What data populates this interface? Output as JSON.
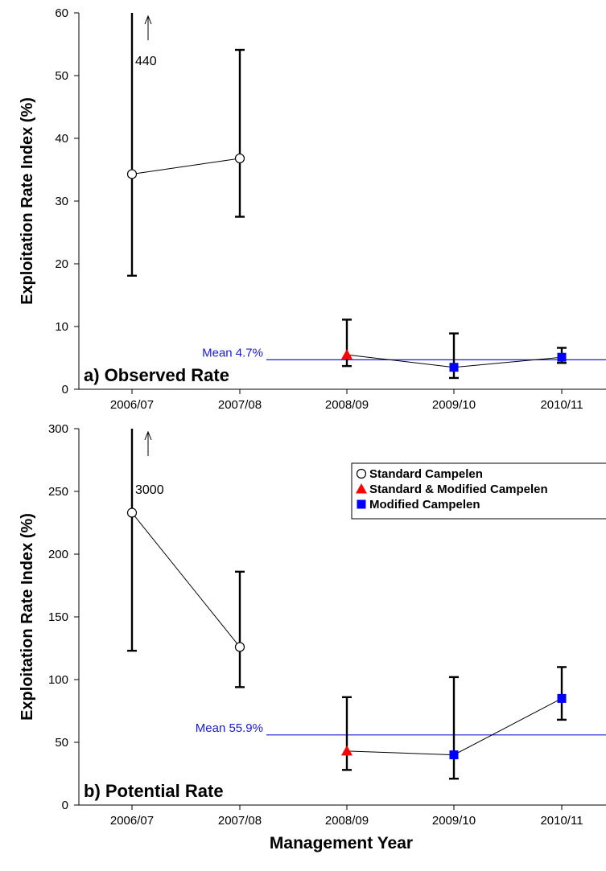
{
  "xlabel": "Management Year",
  "categories": [
    "2006/07",
    "2007/08",
    "2008/09",
    "2009/10",
    "2010/11"
  ],
  "colors": {
    "mean_line": "#1a1adb",
    "standard_marker_fill": "#ffffff",
    "standard_and_modified_marker": "#ff0000",
    "modified_marker": "#0000ff",
    "axis": "#000000"
  },
  "legend": {
    "items": [
      {
        "label": "Standard Campelen",
        "marker": "circle-open"
      },
      {
        "label": "Standard & Modified Campelen",
        "marker": "triangle-red"
      },
      {
        "label": "Modified Campelen",
        "marker": "square-blue"
      }
    ]
  },
  "chart_data": [
    {
      "type": "line",
      "panel_label": "a) Observed Rate",
      "ylabel": "Exploitation Rate Index (%)",
      "ylim": [
        0,
        60
      ],
      "yticks": [
        0,
        10,
        20,
        30,
        40,
        50,
        60
      ],
      "xlabel": "",
      "mean_label": "Mean 4.7%",
      "mean_value": 4.7,
      "off_scale_note": "440",
      "points": [
        {
          "category": "2006/07",
          "value": 34.3,
          "lower": 18.1,
          "upper": 440,
          "marker": "circle-open"
        },
        {
          "category": "2007/08",
          "value": 36.8,
          "lower": 27.5,
          "upper": 54.1,
          "marker": "circle-open"
        },
        {
          "category": "2008/09",
          "value": 5.5,
          "lower": 3.7,
          "upper": 11.1,
          "marker": "triangle-red"
        },
        {
          "category": "2009/10",
          "value": 3.5,
          "lower": 1.8,
          "upper": 8.9,
          "marker": "square-blue"
        },
        {
          "category": "2010/11",
          "value": 5.1,
          "lower": 4.2,
          "upper": 6.6,
          "marker": "square-blue"
        }
      ]
    },
    {
      "type": "line",
      "panel_label": "b) Potential Rate",
      "ylabel": "Exploitation Rate Index (%)",
      "ylim": [
        0,
        300
      ],
      "yticks": [
        0,
        50,
        100,
        150,
        200,
        250,
        300
      ],
      "xlabel": "Management Year",
      "mean_label": "Mean 55.9%",
      "mean_value": 55.9,
      "off_scale_note": "3000",
      "points": [
        {
          "category": "2006/07",
          "value": 233,
          "lower": 123,
          "upper": 3000,
          "marker": "circle-open"
        },
        {
          "category": "2007/08",
          "value": 126,
          "lower": 94,
          "upper": 186,
          "marker": "circle-open"
        },
        {
          "category": "2008/09",
          "value": 43,
          "lower": 28,
          "upper": 86,
          "marker": "triangle-red"
        },
        {
          "category": "2009/10",
          "value": 40,
          "lower": 21,
          "upper": 102,
          "marker": "square-blue"
        },
        {
          "category": "2010/11",
          "value": 85,
          "lower": 68,
          "upper": 110,
          "marker": "square-blue"
        }
      ]
    }
  ]
}
